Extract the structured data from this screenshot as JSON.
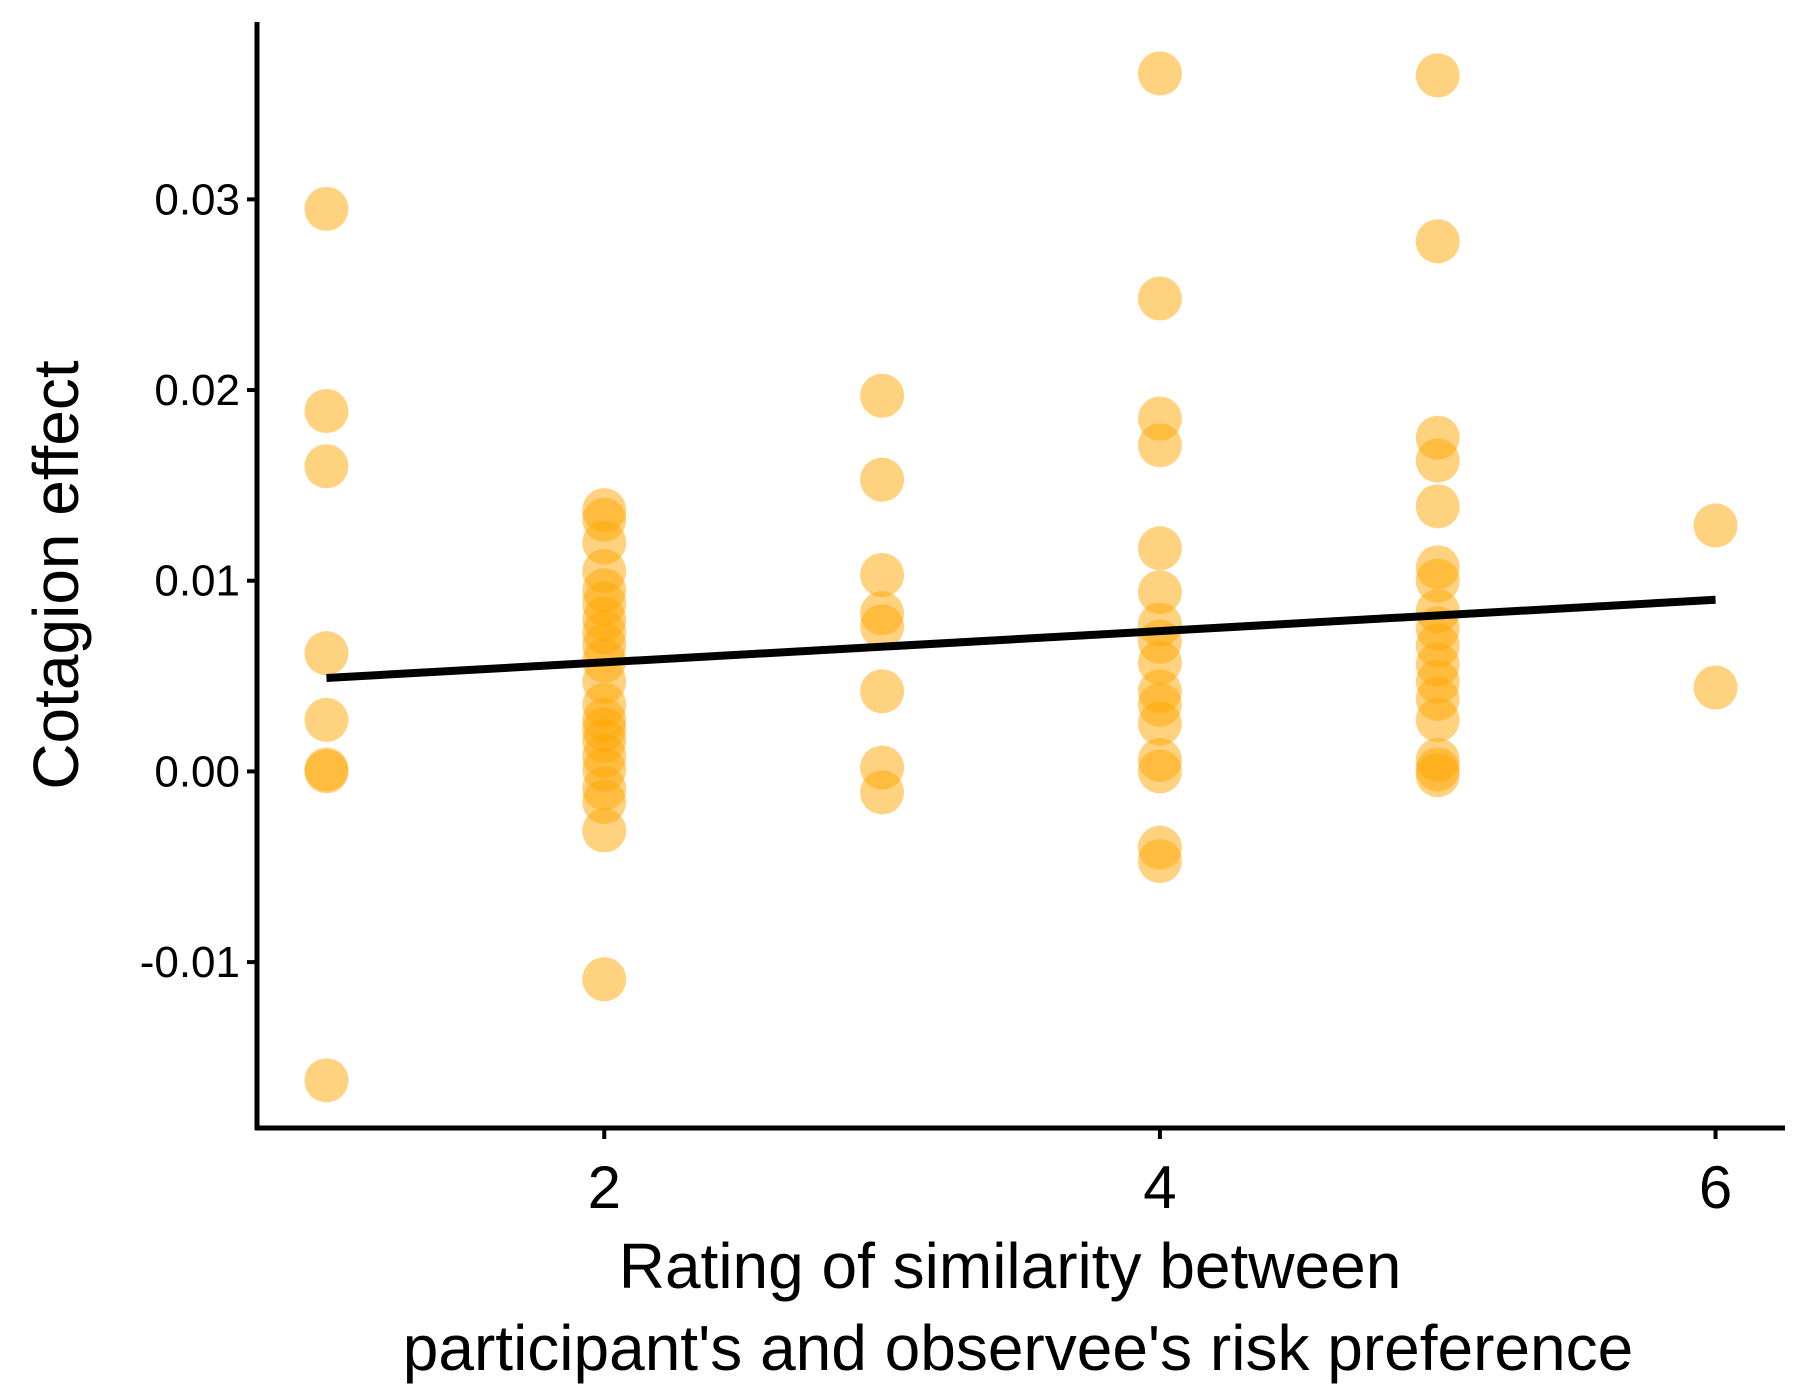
{
  "chart_data": {
    "type": "scatter",
    "title": "",
    "xlabel_lines": [
      "Rating of similarity between",
      "participant's and observee's risk preference"
    ],
    "ylabel": "Cotagion effect",
    "xlim": [
      0.75,
      6.25
    ],
    "ylim": [
      -0.0187,
      0.0393
    ],
    "x_ticks": [
      2,
      4,
      6
    ],
    "x_tick_labels": [
      "2",
      "4",
      "6"
    ],
    "y_ticks": [
      -0.01,
      0.0,
      0.01,
      0.02,
      0.03
    ],
    "y_tick_labels": [
      "-0.01",
      "0.00",
      "0.01",
      "0.02",
      "0.03"
    ],
    "grid": false,
    "legend": "none",
    "point_color": "#FFA500",
    "point_opacity": 0.5,
    "line_color": "#000000",
    "points": [
      {
        "x": 1,
        "y": 0.0295
      },
      {
        "x": 1,
        "y": 0.0189
      },
      {
        "x": 1,
        "y": 0.016
      },
      {
        "x": 1,
        "y": 0.0062
      },
      {
        "x": 1,
        "y": 0.0027
      },
      {
        "x": 1,
        "y": 0.0001
      },
      {
        "x": 1,
        "y": 0.0
      },
      {
        "x": 1,
        "y": -0.0162
      },
      {
        "x": 2,
        "y": 0.0137
      },
      {
        "x": 2,
        "y": 0.0132
      },
      {
        "x": 2,
        "y": 0.012
      },
      {
        "x": 2,
        "y": 0.0105
      },
      {
        "x": 2,
        "y": 0.0095
      },
      {
        "x": 2,
        "y": 0.0088
      },
      {
        "x": 2,
        "y": 0.008
      },
      {
        "x": 2,
        "y": 0.0073
      },
      {
        "x": 2,
        "y": 0.0066
      },
      {
        "x": 2,
        "y": 0.0058
      },
      {
        "x": 2,
        "y": 0.0047
      },
      {
        "x": 2,
        "y": 0.0035
      },
      {
        "x": 2,
        "y": 0.0027
      },
      {
        "x": 2,
        "y": 0.0022
      },
      {
        "x": 2,
        "y": 0.0016
      },
      {
        "x": 2,
        "y": 0.0008
      },
      {
        "x": 2,
        "y": 0.0001
      },
      {
        "x": 2,
        "y": -0.0009
      },
      {
        "x": 2,
        "y": -0.0016
      },
      {
        "x": 2,
        "y": -0.0031
      },
      {
        "x": 2,
        "y": -0.0109
      },
      {
        "x": 3,
        "y": 0.0197
      },
      {
        "x": 3,
        "y": 0.0153
      },
      {
        "x": 3,
        "y": 0.0103
      },
      {
        "x": 3,
        "y": 0.0083
      },
      {
        "x": 3,
        "y": 0.0076
      },
      {
        "x": 3,
        "y": 0.0042
      },
      {
        "x": 3,
        "y": 0.0002
      },
      {
        "x": 3,
        "y": -0.0011
      },
      {
        "x": 4,
        "y": 0.0366
      },
      {
        "x": 4,
        "y": 0.0248
      },
      {
        "x": 4,
        "y": 0.0185
      },
      {
        "x": 4,
        "y": 0.0171
      },
      {
        "x": 4,
        "y": 0.0117
      },
      {
        "x": 4,
        "y": 0.0094
      },
      {
        "x": 4,
        "y": 0.0077
      },
      {
        "x": 4,
        "y": 0.0068
      },
      {
        "x": 4,
        "y": 0.0057
      },
      {
        "x": 4,
        "y": 0.0042
      },
      {
        "x": 4,
        "y": 0.0035
      },
      {
        "x": 4,
        "y": 0.0025
      },
      {
        "x": 4,
        "y": 0.0006
      },
      {
        "x": 4,
        "y": 0.0
      },
      {
        "x": 4,
        "y": -0.004
      },
      {
        "x": 4,
        "y": -0.0047
      },
      {
        "x": 5,
        "y": 0.0365
      },
      {
        "x": 5,
        "y": 0.0278
      },
      {
        "x": 5,
        "y": 0.0175
      },
      {
        "x": 5,
        "y": 0.0163
      },
      {
        "x": 5,
        "y": 0.0139
      },
      {
        "x": 5,
        "y": 0.0107
      },
      {
        "x": 5,
        "y": 0.01
      },
      {
        "x": 5,
        "y": 0.0084
      },
      {
        "x": 5,
        "y": 0.0075
      },
      {
        "x": 5,
        "y": 0.0066
      },
      {
        "x": 5,
        "y": 0.0056
      },
      {
        "x": 5,
        "y": 0.0047
      },
      {
        "x": 5,
        "y": 0.0038
      },
      {
        "x": 5,
        "y": 0.0027
      },
      {
        "x": 5,
        "y": 0.0006
      },
      {
        "x": 5,
        "y": 0.0001
      },
      {
        "x": 5,
        "y": -0.0002
      },
      {
        "x": 6,
        "y": 0.0129
      },
      {
        "x": 6,
        "y": 0.0044
      }
    ],
    "fit_line": {
      "x": [
        1,
        6
      ],
      "y": [
        0.0049,
        0.009
      ]
    }
  }
}
